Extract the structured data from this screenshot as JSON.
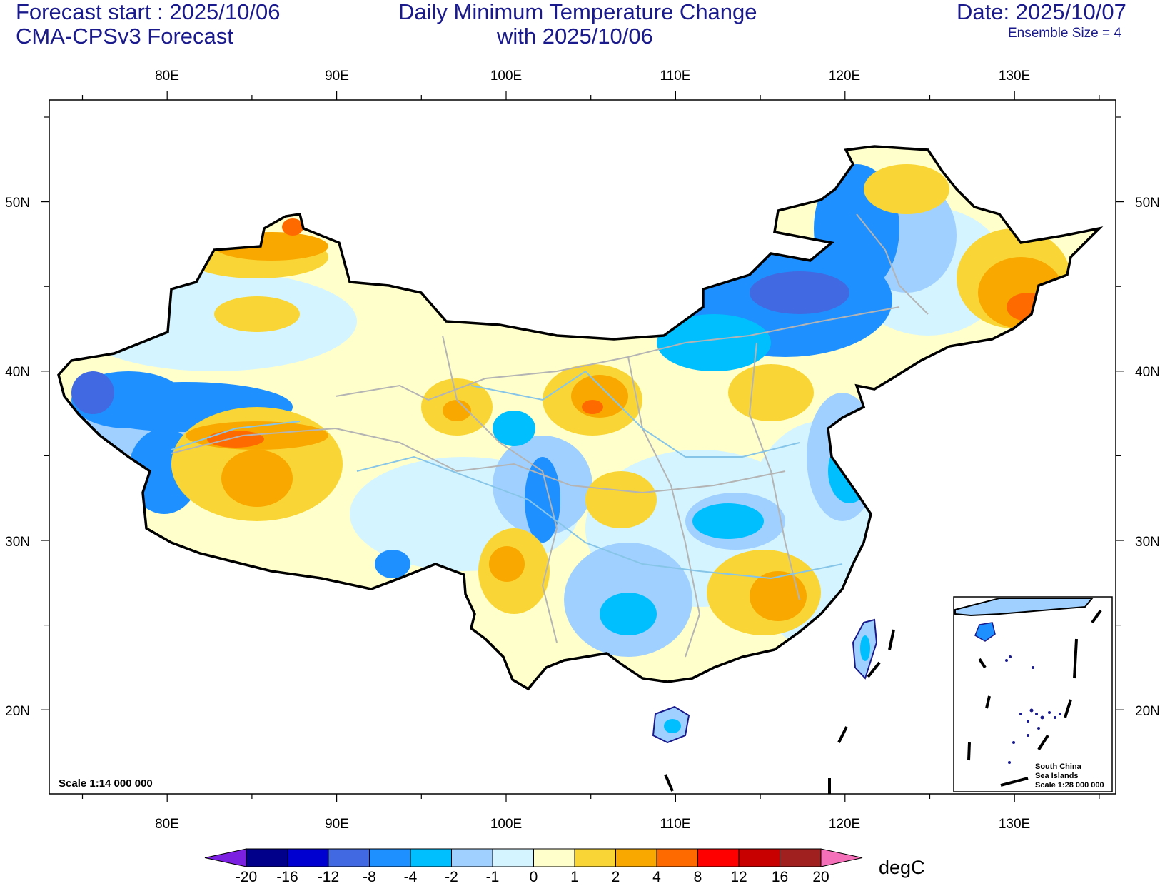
{
  "header": {
    "forecast_start": "Forecast start : 2025/10/06",
    "model": "CMA-CPSv3 Forecast",
    "title_line1": "Daily Minimum Temperature Change",
    "title_line2": "with 2025/10/06",
    "date": "Date: 2025/10/07",
    "ensemble": "Ensemble Size = 4"
  },
  "axes": {
    "lon_labels": [
      "80E",
      "90E",
      "100E",
      "110E",
      "120E",
      "130E"
    ],
    "lat_labels": [
      "50N",
      "40N",
      "30N",
      "20N"
    ]
  },
  "map": {
    "scale_text": "Scale 1:14 000 000",
    "inset_title": [
      "South China",
      "Sea Islands"
    ],
    "inset_scale": "Scale 1:28 000 000"
  },
  "colorbar": {
    "unit": "degC",
    "levels": [
      "-20",
      "-16",
      "-12",
      "-8",
      "-4",
      "-2",
      "-1",
      "0",
      "1",
      "2",
      "4",
      "8",
      "12",
      "16",
      "20"
    ],
    "colors": [
      "#7b1fe0",
      "#00008b",
      "#0000d0",
      "#4169e1",
      "#1e90ff",
      "#00bfff",
      "#a0d0ff",
      "#d4f4ff",
      "#ffffcc",
      "#f9d636",
      "#f9a800",
      "#ff6a00",
      "#ff0000",
      "#c80000",
      "#a02020",
      "#f470b8"
    ]
  }
}
